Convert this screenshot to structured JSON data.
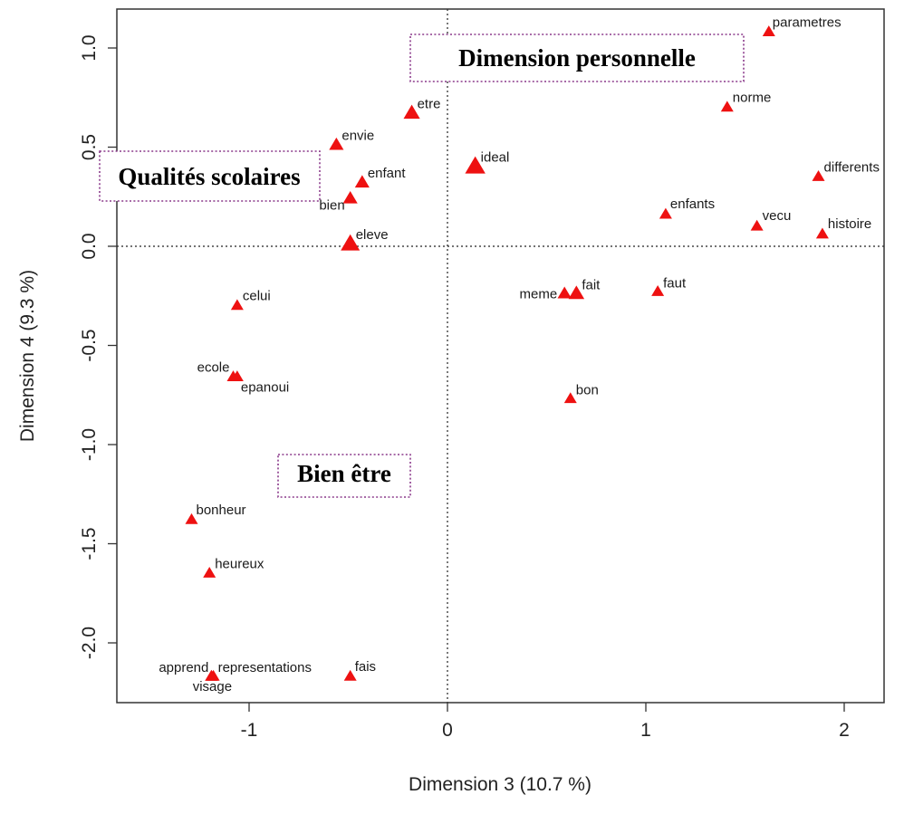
{
  "chart_data": {
    "type": "scatter",
    "xlabel": "Dimension 3 (10.7 %)",
    "ylabel": "Dimension 4 (9.3 %)",
    "xlim": [
      -1.7,
      2.3
    ],
    "ylim": [
      -2.3,
      1.18
    ],
    "x_ticks": [
      -1,
      0,
      1,
      2
    ],
    "x_tick_labels": [
      "-1",
      "0",
      "1",
      "2"
    ],
    "y_ticks": [
      1.0,
      0.5,
      0.0,
      -0.5,
      -1.0,
      -1.5,
      -2.0
    ],
    "y_tick_labels": [
      "1.0",
      "0.5",
      "0.0",
      "-0.5",
      "-1.0",
      "-1.5",
      "-2.0"
    ],
    "reference_lines": {
      "x": 0,
      "y": 0,
      "style": "dotted"
    },
    "marker": "triangle",
    "marker_color": "#ee1111",
    "points": [
      {
        "label": "parametres",
        "x": 1.62,
        "y": 1.08
      },
      {
        "label": "norme",
        "x": 1.41,
        "y": 0.7
      },
      {
        "label": "differents",
        "x": 1.87,
        "y": 0.35
      },
      {
        "label": "enfants",
        "x": 1.1,
        "y": 0.16
      },
      {
        "label": "vecu",
        "x": 1.56,
        "y": 0.1
      },
      {
        "label": "histoire",
        "x": 1.89,
        "y": 0.06
      },
      {
        "label": "etre",
        "x": -0.18,
        "y": 0.67,
        "size": 1.3
      },
      {
        "label": "envie",
        "x": -0.56,
        "y": 0.51,
        "size": 1.15
      },
      {
        "label": "ideal",
        "x": 0.14,
        "y": 0.4,
        "size": 1.6
      },
      {
        "label": "enfant",
        "x": -0.43,
        "y": 0.32,
        "size": 1.15
      },
      {
        "label": "bien",
        "x": -0.49,
        "y": 0.24,
        "size": 1.15
      },
      {
        "label": "eleve",
        "x": -0.49,
        "y": 0.01,
        "size": 1.5
      },
      {
        "label": "meme",
        "x": 0.59,
        "y": -0.24,
        "size": 1.1
      },
      {
        "label": "fait",
        "x": 0.65,
        "y": -0.24,
        "size": 1.25
      },
      {
        "label": "faut",
        "x": 1.06,
        "y": -0.23
      },
      {
        "label": "celui",
        "x": -1.06,
        "y": -0.3
      },
      {
        "label": "ecole",
        "x": -1.08,
        "y": -0.66
      },
      {
        "label": "epanoui",
        "x": -1.06,
        "y": -0.66
      },
      {
        "label": "bon",
        "x": 0.62,
        "y": -0.77
      },
      {
        "label": "bonheur",
        "x": -1.29,
        "y": -1.38
      },
      {
        "label": "heureux",
        "x": -1.2,
        "y": -1.65
      },
      {
        "label": "apprend",
        "x": -1.19,
        "y": -2.17
      },
      {
        "label": "representations",
        "x": -1.18,
        "y": -2.17
      },
      {
        "label": "visage",
        "x": -1.19,
        "y": -2.17
      },
      {
        "label": "fais",
        "x": -0.49,
        "y": -2.17
      }
    ],
    "annotations": [
      {
        "text": "Dimension personnelle"
      },
      {
        "text": "Qualités scolaires"
      },
      {
        "text": "Bien être"
      }
    ]
  }
}
